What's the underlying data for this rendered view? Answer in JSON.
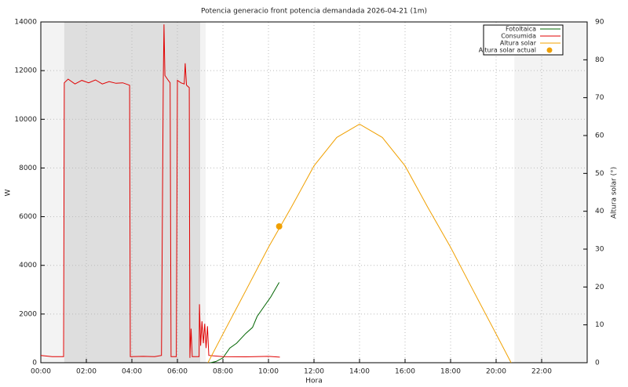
{
  "chart_data": {
    "type": "line",
    "title": "Potencia generacio front potencia demandada 2026-04-21 (1m)",
    "xlabel": "Hora",
    "ylabel": "W",
    "y2label": "Altura solar (°)",
    "xlim": [
      0,
      24
    ],
    "xticks": [
      {
        "value": 0,
        "label": "00:00"
      },
      {
        "value": 2,
        "label": "02:00"
      },
      {
        "value": 4,
        "label": "04:00"
      },
      {
        "value": 6,
        "label": "06:00"
      },
      {
        "value": 8,
        "label": "08:00"
      },
      {
        "value": 10,
        "label": "10:00"
      },
      {
        "value": 12,
        "label": "12:00"
      },
      {
        "value": 14,
        "label": "14:00"
      },
      {
        "value": 16,
        "label": "16:00"
      },
      {
        "value": 18,
        "label": "18:00"
      },
      {
        "value": 20,
        "label": "20:00"
      },
      {
        "value": 22,
        "label": "22:00"
      }
    ],
    "ylim": [
      0,
      14000
    ],
    "yticks": [
      0,
      2000,
      4000,
      6000,
      8000,
      10000,
      12000,
      14000
    ],
    "y2lim": [
      0,
      90
    ],
    "y2ticks": [
      0,
      10,
      20,
      30,
      40,
      50,
      60,
      70,
      80,
      90
    ],
    "grid": true,
    "legend": "upper right",
    "bands": [
      {
        "x": [
          0,
          7.24
        ],
        "color": "#f3f3f3"
      },
      {
        "x": [
          1.03,
          7.0
        ],
        "color": "#dedede"
      },
      {
        "x": [
          20.8,
          24
        ],
        "color": "#f3f3f3"
      }
    ],
    "series": [
      {
        "name": "Fotoltaica",
        "color": "#006400",
        "kind": "line",
        "x": [
          7.45,
          7.7,
          8.0,
          8.3,
          8.6,
          9.0,
          9.3,
          9.5,
          9.8,
          10.1,
          10.47
        ],
        "values": [
          0,
          50,
          200,
          600,
          800,
          1200,
          1450,
          1900,
          2300,
          2700,
          3300
        ]
      },
      {
        "name": "Consumida",
        "color": "#e00000",
        "kind": "line",
        "x": [
          0,
          0.5,
          1.0,
          1.03,
          1.2,
          1.5,
          1.8,
          2.1,
          2.4,
          2.7,
          3.0,
          3.3,
          3.6,
          3.9,
          3.93,
          4.5,
          5.0,
          5.3,
          5.38,
          5.41,
          5.45,
          5.6,
          5.68,
          5.72,
          5.95,
          6.0,
          6.15,
          6.3,
          6.34,
          6.4,
          6.52,
          6.55,
          6.6,
          6.65,
          6.95,
          6.97,
          7.02,
          7.08,
          7.14,
          7.2,
          7.26,
          7.32,
          7.38,
          8.0,
          9.0,
          10.0,
          10.5
        ],
        "values": [
          300,
          250,
          250,
          11500,
          11650,
          11450,
          11600,
          11500,
          11620,
          11450,
          11550,
          11480,
          11500,
          11400,
          250,
          260,
          250,
          300,
          11600,
          13900,
          11800,
          11600,
          11500,
          250,
          250,
          11600,
          11500,
          11450,
          12300,
          11400,
          11300,
          200,
          1400,
          250,
          250,
          2400,
          700,
          1700,
          800,
          1600,
          600,
          1500,
          300,
          250,
          240,
          260,
          230
        ]
      },
      {
        "name": "Altura solar",
        "color": "#f0a000",
        "kind": "line",
        "axis": "y2",
        "x": [
          7.34,
          8,
          9,
          10,
          11,
          12,
          13,
          14,
          15,
          16,
          17,
          18,
          19,
          20,
          20.66
        ],
        "values": [
          0,
          7.6,
          19,
          30.5,
          41,
          52,
          59.5,
          63,
          59.5,
          52,
          41,
          30.5,
          19,
          7.6,
          0
        ]
      },
      {
        "name": "Altura solar actual",
        "color": "#f0a000",
        "kind": "point",
        "axis": "y2",
        "x": [
          10.47
        ],
        "values": [
          36
        ]
      }
    ]
  }
}
